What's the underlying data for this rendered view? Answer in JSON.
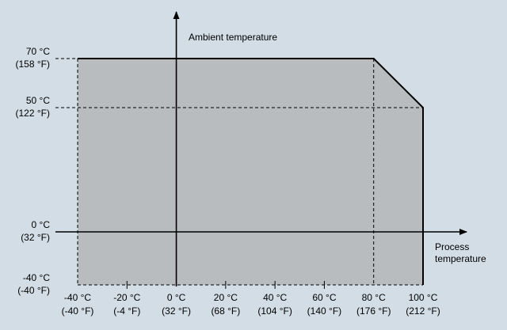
{
  "colors": {
    "background": "#d2dde5",
    "region_fill": "#b9bcbe",
    "line": "#000000"
  },
  "axis_labels": {
    "y_title": "Ambient temperature",
    "x_title_line1": "Process",
    "x_title_line2": "temperature"
  },
  "y_ticks": [
    {
      "c": "70 °C",
      "f": "(158 °F)"
    },
    {
      "c": "50 °C",
      "f": "(122 °F)"
    },
    {
      "c": "0 °C",
      "f": "(32 °F)"
    },
    {
      "c": "-40 °C",
      "f": "(-40 °F)"
    }
  ],
  "x_ticks": [
    {
      "c": "-40 °C",
      "f": "(-40 °F)"
    },
    {
      "c": "-20 °C",
      "f": "(-4 °F)"
    },
    {
      "c": "0 °C",
      "f": "(32 °F)"
    },
    {
      "c": "20 °C",
      "f": "(68 °F)"
    },
    {
      "c": "40 °C",
      "f": "(104 °F)"
    },
    {
      "c": "60 °C",
      "f": "(140 °F)"
    },
    {
      "c": "80 °C",
      "f": "(176 °F)"
    },
    {
      "c": "100 °C",
      "f": "(212 °F)"
    }
  ],
  "operating_region": {
    "process_min_c": -40,
    "process_max_c": 100,
    "ambient_min_c": -40,
    "ambient_max_c": 70,
    "derating_start_process_c": 80,
    "derated_ambient_max_c": 50
  }
}
